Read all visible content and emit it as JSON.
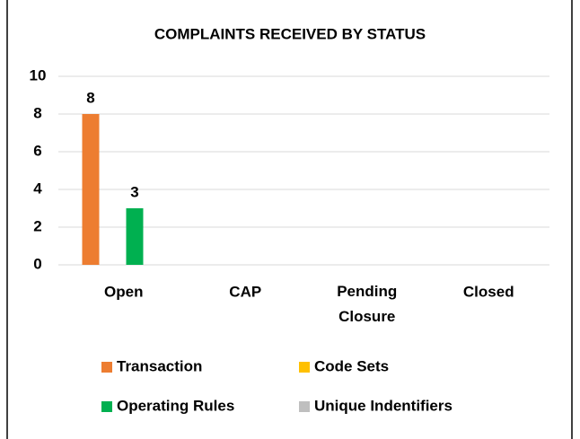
{
  "chart_data": {
    "type": "bar",
    "title": "COMPLAINTS RECEIVED BY STATUS",
    "categories": [
      "Open",
      "CAP",
      "Pending Closure",
      "Closed"
    ],
    "series": [
      {
        "name": "Transaction",
        "color": "#ED7D31",
        "values": [
          8,
          null,
          null,
          null
        ]
      },
      {
        "name": "Code Sets",
        "color": "#FFC000",
        "values": [
          null,
          null,
          null,
          null
        ]
      },
      {
        "name": "Operating Rules",
        "color": "#00B050",
        "values": [
          3,
          null,
          null,
          null
        ]
      },
      {
        "name": "Unique Indentifiers",
        "color": "#BFBFBF",
        "values": [
          null,
          null,
          null,
          null
        ]
      }
    ],
    "ylim": [
      0,
      10
    ],
    "yticks": [
      0,
      2,
      4,
      6,
      8,
      10
    ],
    "grid": true,
    "legend": "bottom"
  }
}
